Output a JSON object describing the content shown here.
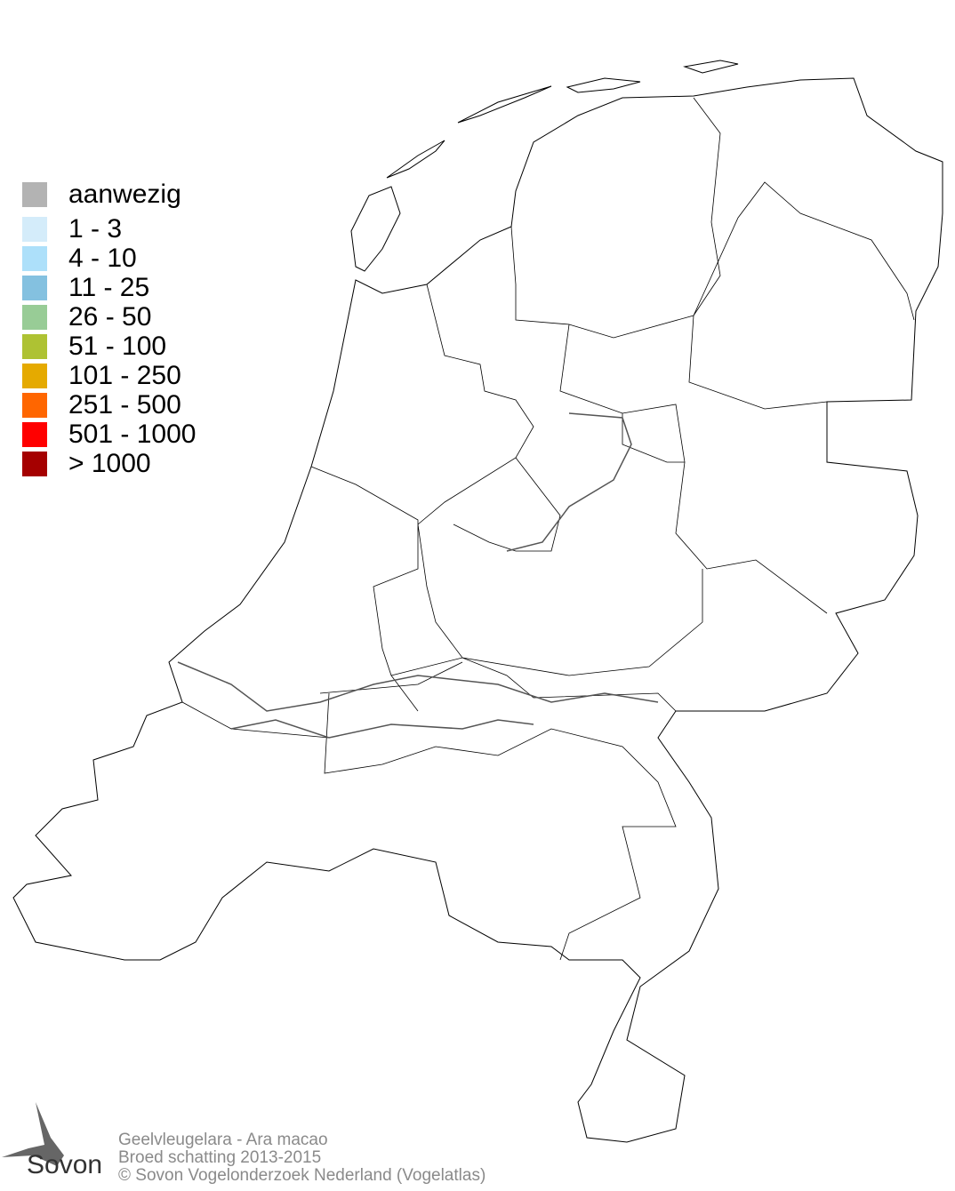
{
  "legend": {
    "items": [
      {
        "label": "aanwezig",
        "color": "#b3b3b3"
      },
      {
        "label": "1 - 3",
        "color": "#d4ecfa"
      },
      {
        "label": "4 - 10",
        "color": "#ade0fa"
      },
      {
        "label": "11 - 25",
        "color": "#84c1e0"
      },
      {
        "label": "26 - 50",
        "color": "#98cc96"
      },
      {
        "label": "51 - 100",
        "color": "#aec233"
      },
      {
        "label": "101 - 250",
        "color": "#e5aa00"
      },
      {
        "label": "251 - 500",
        "color": "#ff6600"
      },
      {
        "label": "501 - 1000",
        "color": "#ff0000"
      },
      {
        "label": "> 1000",
        "color": "#a50000"
      }
    ]
  },
  "footer": {
    "species": "Geelvleugelara - Ara macao",
    "subtitle": "Broed schatting 2013-2015",
    "copyright": "© Sovon Vogelonderzoek Nederland (Vogelatlas)"
  },
  "logo": {
    "text": "Sovon"
  }
}
